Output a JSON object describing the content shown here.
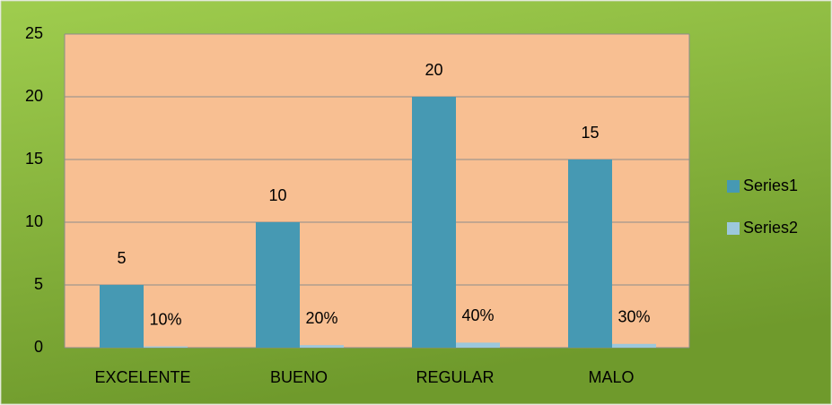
{
  "chart_data": {
    "type": "bar",
    "categories": [
      "EXCELENTE",
      "BUENO",
      "REGULAR",
      "MALO"
    ],
    "series": [
      {
        "name": "Series1",
        "color": "#4699b3",
        "values": [
          5,
          10,
          20,
          15
        ]
      },
      {
        "name": "Series2",
        "color": "#9cc8dc",
        "values": [
          0.1,
          0.2,
          0.4,
          0.3
        ],
        "value_labels": [
          "10%",
          "20%",
          "40%",
          "30%"
        ]
      }
    ],
    "ylim": [
      0,
      25
    ],
    "yticks": [
      0,
      5,
      10,
      15,
      20,
      25
    ],
    "grid": true,
    "legend": "right",
    "plot_color": "#f8bf92"
  }
}
